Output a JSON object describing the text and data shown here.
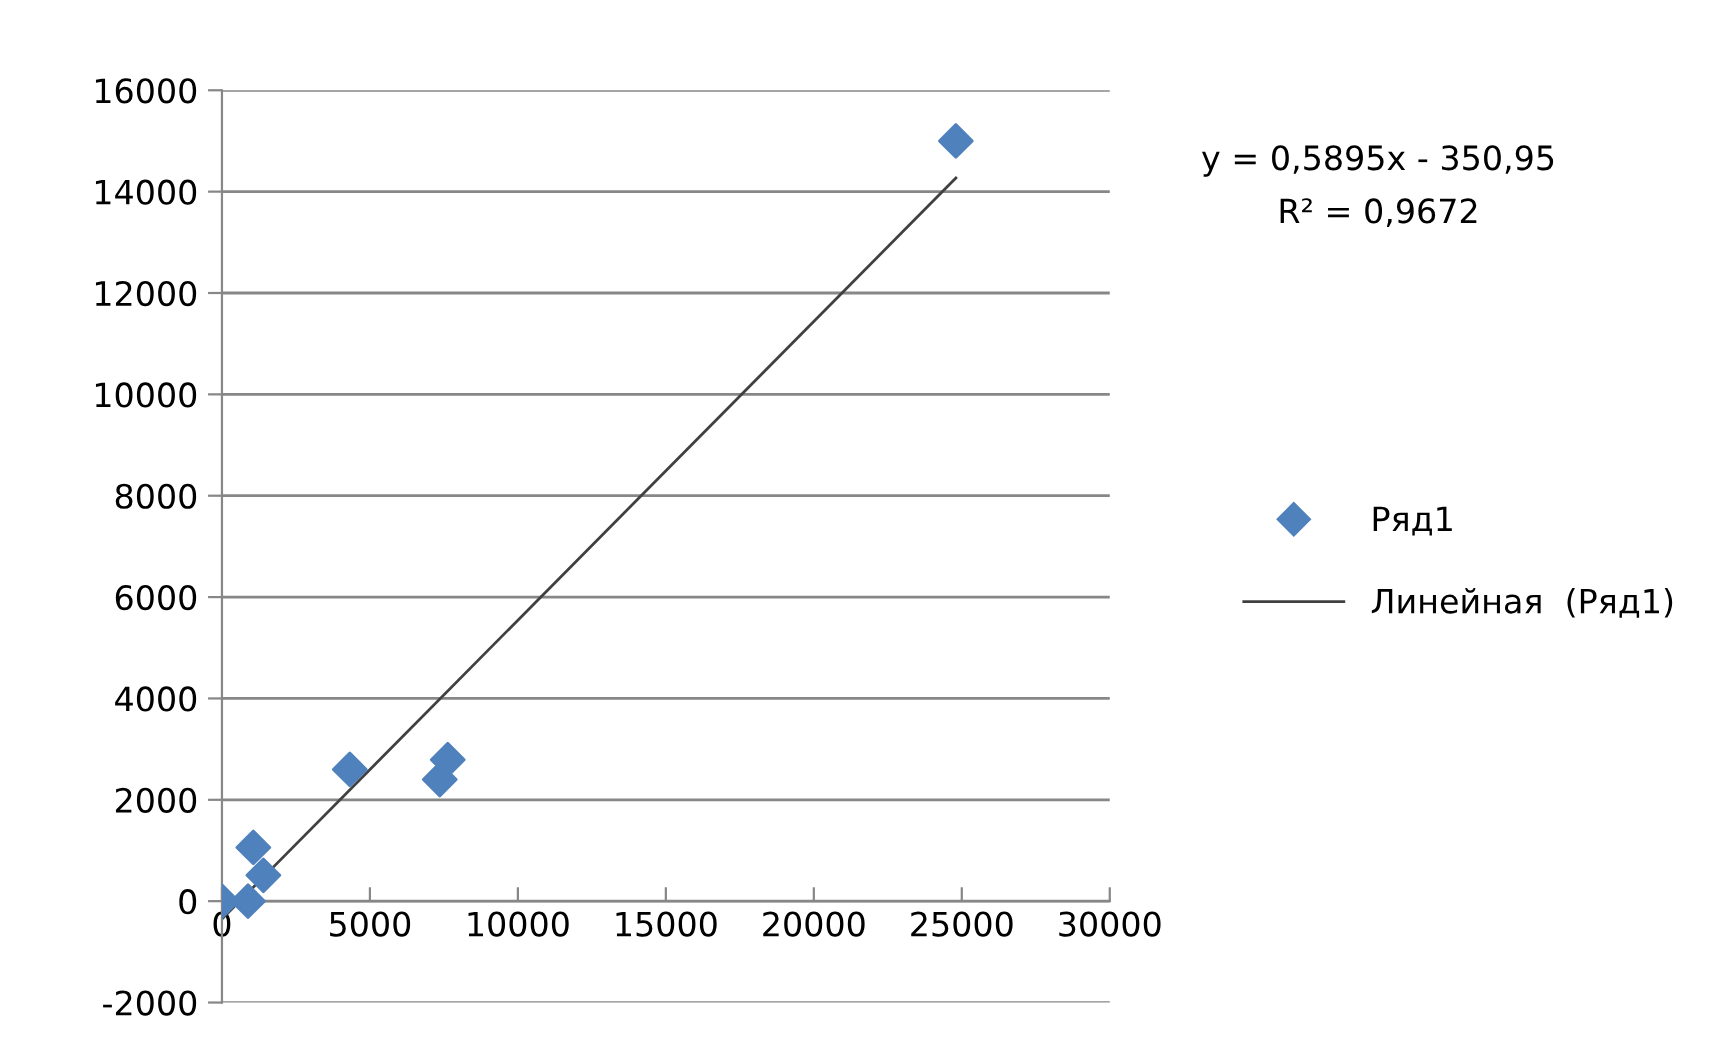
{
  "chart_data": {
    "type": "scatter",
    "marker": "diamond",
    "grid": "y",
    "legend": "right",
    "xlim": [
      0,
      30000
    ],
    "xticks": [
      0,
      5000,
      10000,
      15000,
      20000,
      25000,
      30000
    ],
    "ylim": [
      -2000,
      16000
    ],
    "yticks": [
      -2000,
      0,
      2000,
      4000,
      6000,
      8000,
      10000,
      12000,
      14000,
      16000
    ],
    "series": [
      {
        "name": "Ряд1",
        "color": "#4f81bd",
        "x": [
          0,
          880,
          1060,
          1400,
          4320,
          7360,
          7630,
          24800
        ],
        "values": [
          0,
          0,
          1060,
          510,
          2600,
          2400,
          2790,
          15000
        ]
      },
      {
        "name": "Линейная  (Ряд1)",
        "type": "line",
        "color": "#404040",
        "line_style": "solid",
        "marker": "none",
        "x": [
          0,
          24800
        ],
        "values": [
          -351,
          14269
        ]
      }
    ],
    "annotations": [
      "y = 0,5895x - 350,95",
      "R² = 0,9672"
    ]
  }
}
